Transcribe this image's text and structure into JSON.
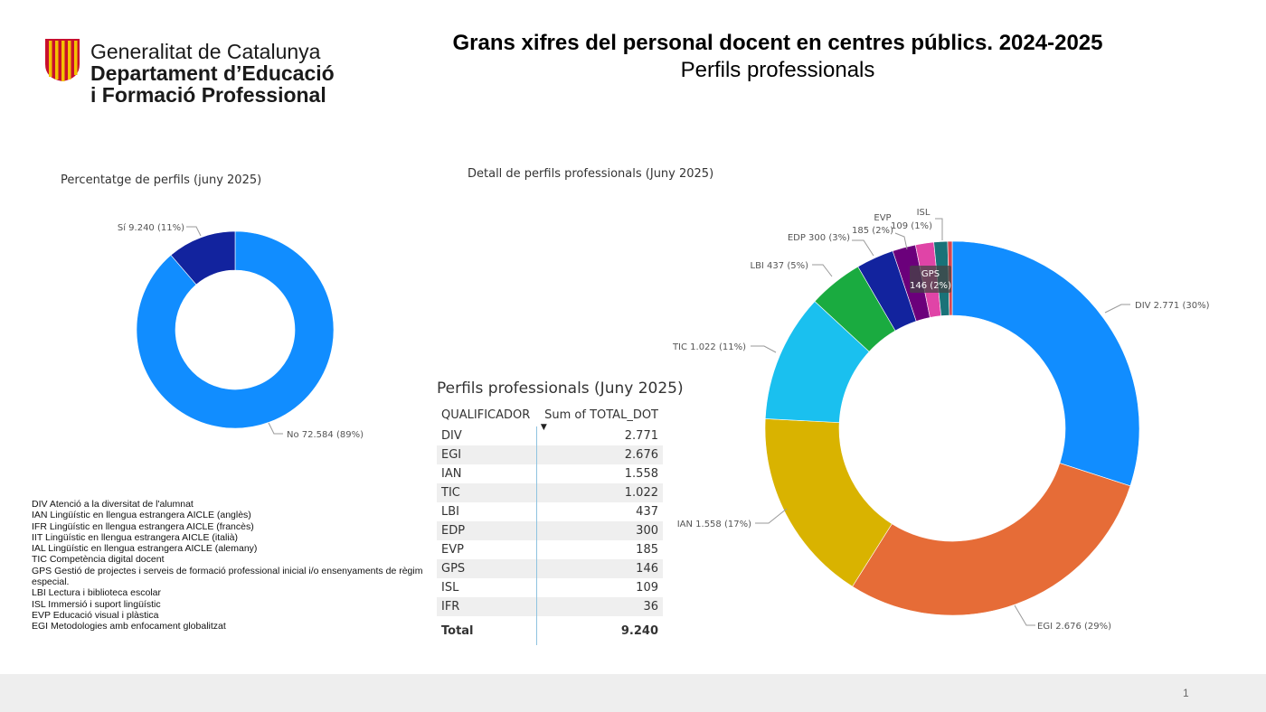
{
  "header": {
    "logo_lines": [
      "Generalitat de Catalunya",
      "Departament d’Educació",
      "i Formació Professional"
    ],
    "title": "Grans xifres del personal docent en centres públics. 2024-2025",
    "subtitle": "Perfils professionals"
  },
  "colors": {
    "no": "#118dff",
    "si": "#12239e",
    "DIV": "#118dff",
    "EGI": "#e66c37",
    "IAN": "#d9b300",
    "TIC": "#1ac0ef",
    "LBI": "#1aab40",
    "EDP": "#12239e",
    "EVP": "#6b007b",
    "GPS": "#e044a7",
    "ISL": "#197278",
    "IFR": "#d64550",
    "table_divider": "#8fc3e0"
  },
  "chart_data": [
    {
      "type": "pie",
      "variant": "donut",
      "title": "Percentatge de perfils (juny 2025)",
      "categories": [
        "No",
        "Sí"
      ],
      "values": [
        72584,
        9240
      ],
      "labels": [
        "No 72.584 (89%)",
        "Sí 9.240 (11%)"
      ]
    },
    {
      "type": "pie",
      "variant": "donut",
      "title": "Detall de perfils professionals (Juny 2025)",
      "categories": [
        "DIV",
        "EGI",
        "IAN",
        "TIC",
        "LBI",
        "EDP",
        "EVP",
        "GPS",
        "ISL",
        "IFR"
      ],
      "values": [
        2771,
        2676,
        1558,
        1022,
        437,
        300,
        185,
        146,
        109,
        36
      ],
      "labels": {
        "DIV": "DIV 2.771 (30%)",
        "EGI": "EGI 2.676 (29%)",
        "IAN": "IAN 1.558 (17%)",
        "TIC": "TIC 1.022 (11%)",
        "LBI": "LBI 437 (5%)",
        "EDP": "EDP 300 (3%)",
        "EVP_name": "EVP",
        "EVP_value": "185 (2%)",
        "GPS_name": "GPS",
        "GPS_value": "146 (2%)",
        "ISL_name": "ISL",
        "ISL_value": "109 (1%)"
      }
    },
    {
      "type": "table",
      "title": "Perfils professionals (Juny 2025)",
      "columns": [
        "QUALIFICADOR",
        "Sum of TOTAL_DOT"
      ],
      "rows": [
        [
          "DIV",
          "2.771"
        ],
        [
          "EGI",
          "2.676"
        ],
        [
          "IAN",
          "1.558"
        ],
        [
          "TIC",
          "1.022"
        ],
        [
          "LBI",
          "437"
        ],
        [
          "EDP",
          "300"
        ],
        [
          "EVP",
          "185"
        ],
        [
          "GPS",
          "146"
        ],
        [
          "ISL",
          "109"
        ],
        [
          "IFR",
          "36"
        ]
      ],
      "total": [
        "Total",
        "9.240"
      ]
    }
  ],
  "legend_notes": [
    "DIV Atenció a la diversitat de l'alumnat",
    "IAN Lingüístic en llengua estrangera AICLE (anglès)",
    "IFR Lingüístic en llengua estrangera AICLE (francès)",
    "IIT Lingüístic en llengua estrangera AICLE (italià)",
    "IAL Lingüístic en llengua estrangera AICLE (alemany)",
    "TIC Competència digital docent",
    "GPS Gestió de projectes i serveis de formació professional inicial i/o ensenyaments de règim",
    "especial.",
    "LBI Lectura i biblioteca escolar",
    "ISL Immersió i suport lingüístic",
    "EVP Educació visual i plàstica",
    "EGI Metodologies amb enfocament globalitzat"
  ],
  "footer": {
    "page_number": "1"
  }
}
